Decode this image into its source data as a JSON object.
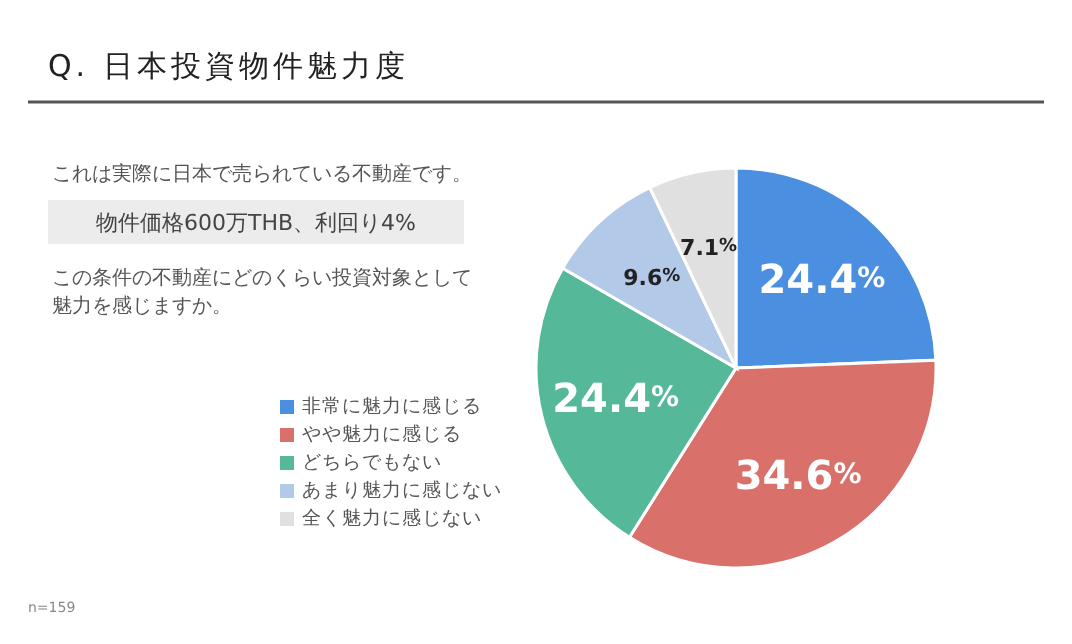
{
  "chart_data": {
    "type": "pie",
    "title": "Q. 日本投資物件魅力度",
    "annotations": [
      "これは実際に日本で売られている不動産です。",
      "物件価格600万THB、利回り4%",
      "この条件の不動産にどのくらい投資対象として魅力を感じますか。",
      "n=159"
    ],
    "categories": [
      "非常に魅力に感じる",
      "やや魅力に感じる",
      "どちらでもない",
      "あまり魅力に感じない",
      "全く魅力に感じない"
    ],
    "values": [
      24.4,
      34.6,
      24.4,
      9.6,
      7.1
    ],
    "colors": [
      "#4a8fe0",
      "#d9706a",
      "#55b898",
      "#b3c9e8",
      "#e0e0e0"
    ],
    "value_labels": [
      "24.4%",
      "34.6%",
      "24.4%",
      "9.6%",
      "7.1%"
    ],
    "legend": "left"
  }
}
